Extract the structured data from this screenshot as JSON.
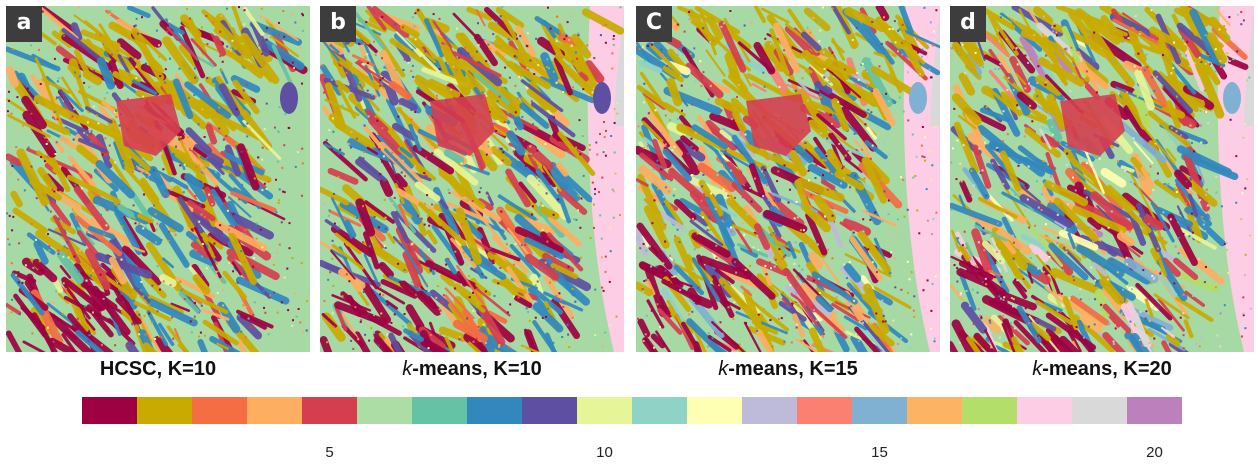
{
  "panels": [
    {
      "id": "a",
      "letter": "a",
      "caption_bold": "HCSC, K=10",
      "caption_italic": "",
      "clusters": 10
    },
    {
      "id": "b",
      "letter": "b",
      "caption_bold": "-means, K=10",
      "caption_italic": "k",
      "clusters": 10
    },
    {
      "id": "c",
      "letter": "C",
      "caption_bold": "-means, K=15",
      "caption_italic": "k",
      "clusters": 15
    },
    {
      "id": "d",
      "letter": "d",
      "caption_bold": "-means, K=20",
      "caption_italic": "k",
      "clusters": 20
    }
  ],
  "colorbar": {
    "colors": [
      "#9e0142",
      "#c9ab00",
      "#f46d43",
      "#fdae61",
      "#d53e4f",
      "#abdda4",
      "#66c2a5",
      "#3288bd",
      "#5e4fa2",
      "#e6f598",
      "#8fd3c7",
      "#ffffb3",
      "#bebada",
      "#fb8072",
      "#80b1d3",
      "#fdb462",
      "#b3de69",
      "#fccde5",
      "#d9d9d9",
      "#bc80bd"
    ],
    "ticks": [
      "5",
      "10",
      "15",
      "20"
    ]
  },
  "colors": {
    "background_cluster": "#abdda4",
    "label_bg": "#3d3d3d"
  }
}
